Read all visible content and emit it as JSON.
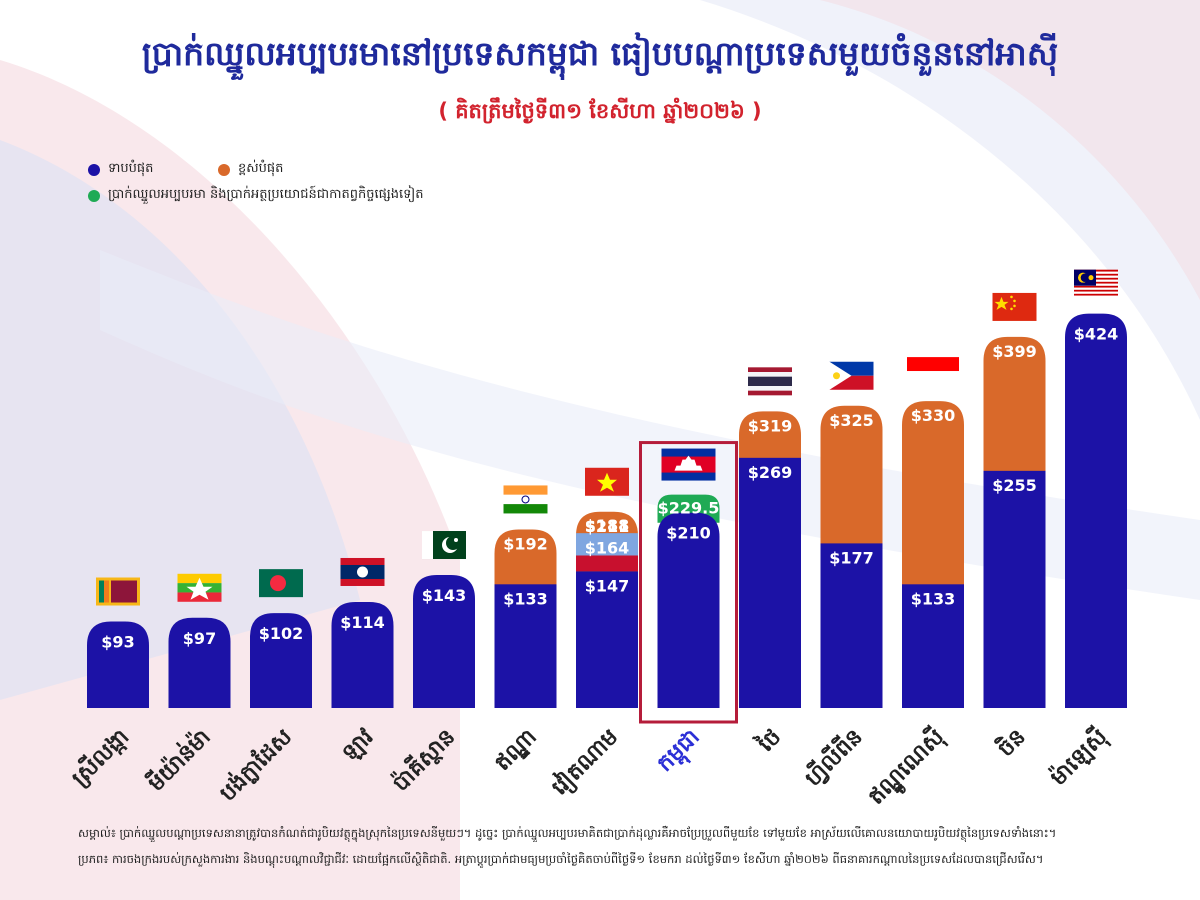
{
  "header": {
    "title": "ប្រាក់ឈ្នួលអប្បបរមានៅប្រទេសកម្ពុជា ធៀបបណ្តាប្រទេសមួយចំនួននៅអាស៊ី",
    "subtitle": "( គិតត្រឹមថ្ងៃទី៣១ ខែសីហា ឆ្នាំ២០២៦ )"
  },
  "legend": {
    "items": [
      {
        "label": "ទាបបំផុត",
        "color": "#1c12a6"
      },
      {
        "label": "ខ្ពស់បំផុត",
        "color": "#d9692a"
      },
      {
        "label": "ប្រាក់ឈ្នួលអប្បបរមា និងប្រាក់អត្ថប្រយោជន៍ជាកាតព្វកិច្ចផ្សេងទៀត",
        "color": "#1faa55"
      }
    ]
  },
  "colors": {
    "low": "#1c12a6",
    "high": "#d9692a",
    "highlight_frame": "#b51c3a",
    "red_band": "#c8102e",
    "light_blue_band": "#7fa6e0",
    "green_cap": "#1faa55",
    "title": "#1f2a9c",
    "subtitle": "#d2232e"
  },
  "chart_data": {
    "type": "bar",
    "title": "ប្រាក់ឈ្នួលអប្បបរមានៅប្រទេសកម្ពុជា ធៀបបណ្តាប្រទេសមួយចំនួននៅអាស៊ី",
    "subtitle": "( គិតត្រឹមថ្ងៃទី៣១ ខែសីហា ឆ្នាំ២០២៦ )",
    "currency": "USD",
    "categories": [
      "ស្រីលង្កា",
      "មីយ៉ាន់ម៉ា",
      "បង់ក្លាដែស",
      "ឡាវ",
      "ប៉ាគីស្ថាន",
      "ឥណ្ឌា",
      "វៀតណាម",
      "កម្ពុជា",
      "ថៃ",
      "ហ្វីលីពីន",
      "ឥណ្ឌូណេស៊ី",
      "ចិន",
      "ម៉ាឡេស៊ី"
    ],
    "flags": [
      "sri-lanka-flag",
      "myanmar-flag",
      "bangladesh-flag",
      "laos-flag",
      "pakistan-flag",
      "india-flag",
      "vietnam-flag",
      "cambodia-flag",
      "thailand-flag",
      "philippines-flag",
      "indonesia-flag",
      "china-flag",
      "malaysia-flag"
    ],
    "highlight": "កម្ពុជា",
    "series": [
      {
        "name": "ទាបបំផុត",
        "values": [
          93,
          97,
          102,
          114,
          143,
          133,
          147,
          210,
          269,
          177,
          133,
          255,
          424
        ]
      },
      {
        "name": "ខ្ពស់បំផុត",
        "values": [
          null,
          null,
          null,
          null,
          null,
          192,
          211,
          null,
          319,
          325,
          330,
          399,
          null
        ]
      }
    ],
    "extra_labels": [
      {
        "category": "វៀតណាម",
        "values": [
          164,
          188
        ]
      },
      {
        "category": "កម្ពុជា",
        "values": [
          229.5
        ]
      }
    ],
    "value_labels": {
      "low": [
        "$93",
        "$97",
        "$102",
        "$114",
        "$143",
        "$133",
        "$147",
        "$210",
        "$269",
        "$177",
        "$133",
        "$255",
        "$424"
      ],
      "high": [
        "",
        "",
        "",
        "",
        "",
        "$192",
        "$211",
        "",
        "$319",
        "$325",
        "$330",
        "$399",
        ""
      ],
      "vietnam_mid": [
        "$164",
        "$188"
      ],
      "cambodia_top": "$229.5"
    },
    "ylim": [
      0,
      440
    ],
    "grid": false,
    "legend_position": "top-left"
  },
  "footnote": {
    "line1": "សម្គាល់៖ ប្រាក់ឈ្នួលបណ្តាប្រទេសនានាត្រូវបានកំណត់ជារូបិយវត្ថុក្នុងស្រុកនៃប្រទេសនីមួយៗ។ ដូច្នេះ ប្រាក់ឈ្នួលអប្បបរមាគិតជាប្រាក់ដុល្លារគឺអាចប្រែប្រួលពីមួយខែ ទៅមួយខែ អាស្រ័យលើគោលនយោបាយរូបិយវត្ថុនៃប្រទេសទាំងនោះ។",
    "line2": "ប្រភព៖ ការចងក្រងរបស់ក្រសួងការងារ និងបណ្តុះបណ្តាលវិជ្ជាជីវៈ ដោយផ្អែកលើស្ថិតិជាតិ. អត្រាប្តូរប្រាក់ជាមធ្យមប្រចាំថ្ងៃគិតចាប់ពីថ្ងៃទី១ ខែមករា ដល់ថ្ងៃទី៣១ ខែសីហា ឆ្នាំ២០២៦ ពីធនាគារកណ្តាលនៃប្រទេសដែលបានជ្រើសរើស។"
  }
}
